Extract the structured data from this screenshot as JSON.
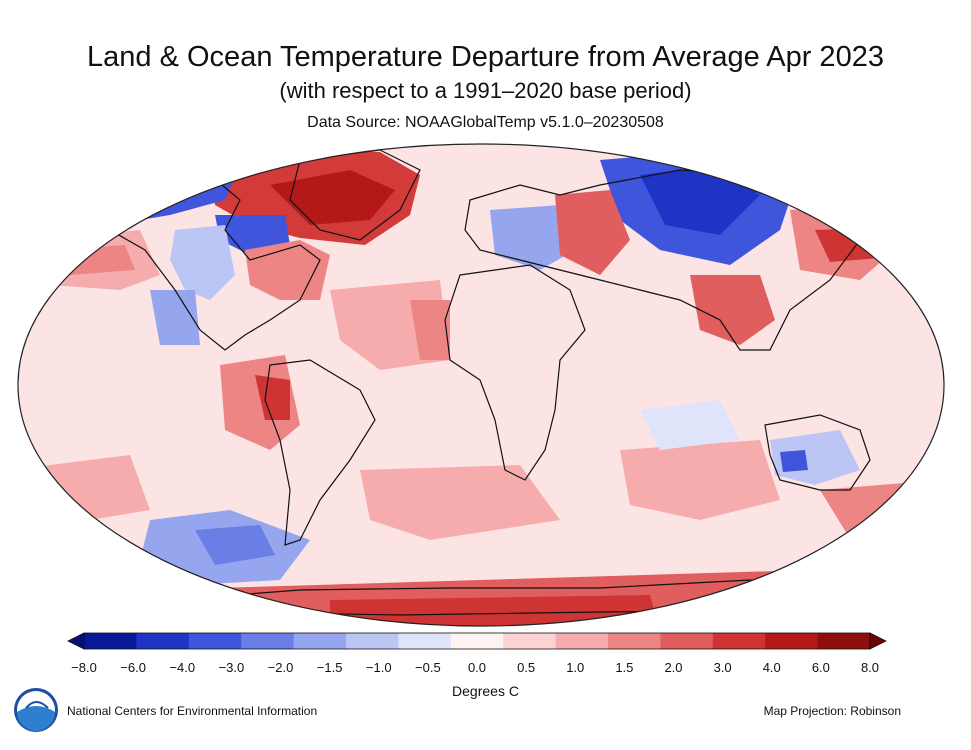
{
  "title": "Land & Ocean Temperature Departure from Average Apr 2023",
  "subtitle": "(with respect to a 1991–2020 base period)",
  "source": "Data Source: NOAAGlobalTemp v5.1.0–20230508",
  "colorbar": {
    "ticks": [
      "−8.0",
      "−6.0",
      "−4.0",
      "−3.0",
      "−2.0",
      "−1.5",
      "−1.0",
      "−0.5",
      "0.0",
      "0.5",
      "1.0",
      "1.5",
      "2.0",
      "3.0",
      "4.0",
      "6.0",
      "8.0"
    ],
    "colors": [
      "#08189a",
      "#1e34c4",
      "#3f55dc",
      "#6a7fe6",
      "#95a5ee",
      "#bcc6f5",
      "#dfe4fb",
      "#fff2f2",
      "#fcd2d2",
      "#f6acac",
      "#ee8585",
      "#e05e5e",
      "#cf3434",
      "#b41919",
      "#8e0d0d"
    ],
    "under_color": "#061078",
    "over_color": "#6e0505",
    "units": "Degrees C"
  },
  "footer": {
    "org": "National Centers for Environmental Information",
    "projection": "Map Projection: Robinson",
    "logo_text": "NOAA"
  }
}
